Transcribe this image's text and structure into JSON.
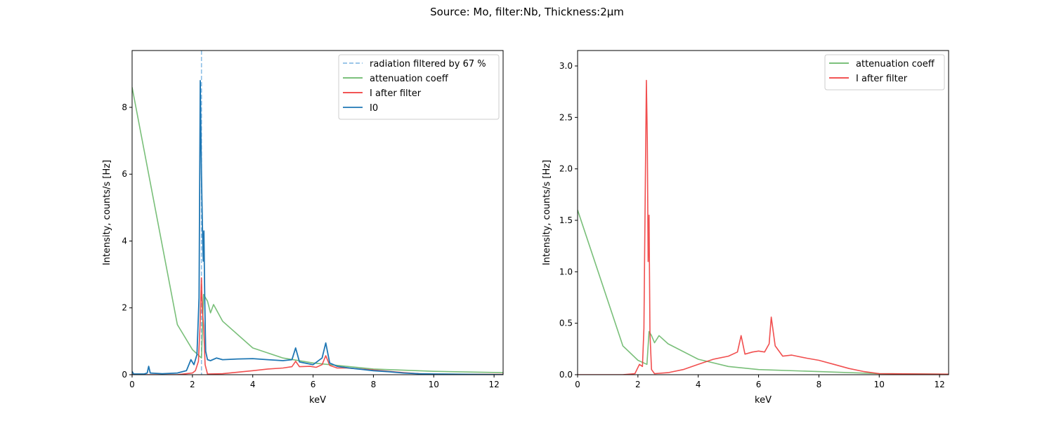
{
  "figure": {
    "suptitle": "Source: Mo, filter:Nb, Thickness:2μm"
  },
  "chart_data": [
    {
      "type": "line",
      "xlabel": "keV",
      "ylabel": "Intensity, counts/s [Hz]",
      "xlim": [
        0,
        12.3
      ],
      "ylim": [
        0,
        9.7
      ],
      "xticks": [
        0,
        2,
        4,
        6,
        8,
        10,
        12
      ],
      "yticks": [
        0,
        2,
        4,
        6,
        8
      ],
      "grid": false,
      "legend_position": "top-right",
      "vline": {
        "x": 2.3,
        "label": "radiation filtered by 67 %",
        "color": "#8dbfe6",
        "style": "dashed"
      },
      "series": [
        {
          "name": "attenuation coeff",
          "color": "#6ab86a",
          "x": [
            0,
            1.5,
            2.0,
            2.3,
            2.37,
            2.5,
            2.6,
            2.7,
            3.0,
            4.0,
            5.0,
            6.0,
            8.0,
            10.0,
            12.3
          ],
          "values": [
            8.6,
            1.5,
            0.75,
            0.5,
            2.4,
            2.2,
            1.85,
            2.1,
            1.6,
            0.8,
            0.5,
            0.35,
            0.17,
            0.1,
            0.06
          ]
        },
        {
          "name": "I after filter",
          "color": "#f03c3c",
          "x": [
            0,
            1.5,
            2.0,
            2.1,
            2.2,
            2.25,
            2.3,
            2.33,
            2.37,
            2.42,
            2.5,
            3.0,
            4.0,
            4.5,
            5.0,
            5.3,
            5.42,
            5.55,
            5.9,
            6.1,
            6.3,
            6.42,
            6.55,
            6.8,
            7.1,
            7.6,
            8.0,
            8.5,
            9.0,
            9.5,
            10.0,
            12.3
          ],
          "values": [
            0,
            0,
            0.05,
            0.12,
            0.4,
            1.4,
            2.9,
            1.9,
            1.5,
            0.3,
            0.02,
            0.03,
            0.12,
            0.17,
            0.2,
            0.24,
            0.4,
            0.24,
            0.25,
            0.22,
            0.3,
            0.57,
            0.28,
            0.2,
            0.2,
            0.17,
            0.14,
            0.1,
            0.06,
            0.03,
            0.01,
            0.01
          ]
        },
        {
          "name": "I0",
          "color": "#1f77b4",
          "x": [
            0,
            0.05,
            0.1,
            0.4,
            0.5,
            0.55,
            0.6,
            1.0,
            1.5,
            1.8,
            1.95,
            2.05,
            2.15,
            2.22,
            2.26,
            2.3,
            2.33,
            2.36,
            2.38,
            2.41,
            2.44,
            2.5,
            2.6,
            2.8,
            3.0,
            3.5,
            4.0,
            4.5,
            5.0,
            5.3,
            5.42,
            5.55,
            6.0,
            6.3,
            6.42,
            6.55,
            6.8,
            7.2,
            7.6,
            8.0,
            8.5,
            9.0,
            9.5,
            10.0,
            12.3
          ],
          "values": [
            0.1,
            0.02,
            0.02,
            0.02,
            0.05,
            0.25,
            0.05,
            0.03,
            0.05,
            0.12,
            0.45,
            0.3,
            0.6,
            2.3,
            8.8,
            6.0,
            4.5,
            3.4,
            4.3,
            2.1,
            0.7,
            0.45,
            0.42,
            0.5,
            0.45,
            0.47,
            0.48,
            0.45,
            0.42,
            0.45,
            0.8,
            0.38,
            0.3,
            0.5,
            0.95,
            0.35,
            0.25,
            0.2,
            0.16,
            0.12,
            0.09,
            0.05,
            0.03,
            0.02,
            0.0
          ]
        }
      ]
    },
    {
      "type": "line",
      "xlabel": "keV",
      "ylabel": "Intensity, counts/s [Hz]",
      "xlim": [
        0,
        12.3
      ],
      "ylim": [
        0,
        3.15
      ],
      "xticks": [
        0,
        2,
        4,
        6,
        8,
        10,
        12
      ],
      "yticks": [
        0.0,
        0.5,
        1.0,
        1.5,
        2.0,
        2.5,
        3.0
      ],
      "grid": false,
      "legend_position": "top-right",
      "series": [
        {
          "name": "attenuation coeff",
          "color": "#6ab86a",
          "x": [
            0,
            1.5,
            2.0,
            2.3,
            2.37,
            2.45,
            2.55,
            2.7,
            3.0,
            4.0,
            5.0,
            6.0,
            8.0,
            10.0,
            12.3
          ],
          "values": [
            1.6,
            0.28,
            0.14,
            0.1,
            0.42,
            0.38,
            0.31,
            0.38,
            0.3,
            0.15,
            0.08,
            0.05,
            0.03,
            0.01,
            0.005
          ]
        },
        {
          "name": "I after filter",
          "color": "#f03c3c",
          "x": [
            0,
            1.5,
            1.9,
            2.05,
            2.15,
            2.2,
            2.25,
            2.28,
            2.31,
            2.34,
            2.37,
            2.4,
            2.45,
            2.55,
            3.0,
            3.5,
            4.0,
            4.5,
            5.0,
            5.3,
            5.42,
            5.55,
            5.8,
            6.0,
            6.2,
            6.35,
            6.42,
            6.55,
            6.8,
            7.1,
            7.6,
            8.0,
            8.5,
            9.0,
            9.5,
            10.0,
            12.3
          ],
          "values": [
            0,
            0,
            0.01,
            0.1,
            0.08,
            0.45,
            2.0,
            2.86,
            2.3,
            1.1,
            1.55,
            0.4,
            0.05,
            0.01,
            0.02,
            0.05,
            0.1,
            0.15,
            0.18,
            0.22,
            0.38,
            0.2,
            0.22,
            0.23,
            0.22,
            0.3,
            0.56,
            0.28,
            0.18,
            0.19,
            0.16,
            0.14,
            0.1,
            0.06,
            0.03,
            0.01,
            0.005
          ]
        }
      ]
    }
  ]
}
